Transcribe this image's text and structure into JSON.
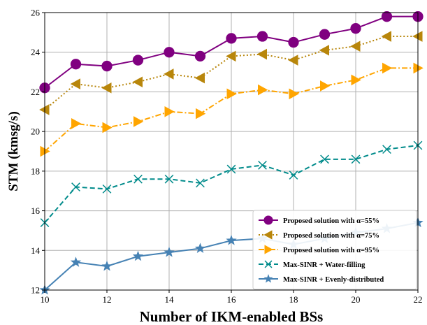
{
  "chart_data": {
    "type": "line",
    "title": "",
    "xlabel": "Number of IKM-enabled BSs",
    "ylabel": "STM (kmsg/s)",
    "xlim": [
      10,
      22
    ],
    "ylim": [
      12,
      26
    ],
    "x_ticks": [
      "10",
      "12",
      "14",
      "16",
      "18",
      "20",
      "22"
    ],
    "y_ticks": [
      "12",
      "14",
      "16",
      "18",
      "20",
      "22",
      "24",
      "26"
    ],
    "grid": true,
    "legend_position": "lower-right",
    "x": [
      10,
      11,
      12,
      13,
      14,
      15,
      16,
      17,
      18,
      19,
      20,
      21,
      22
    ],
    "series": [
      {
        "name": "Proposed solution with α=55%",
        "color": "#800080",
        "dash": "solid",
        "marker": "circle",
        "values": [
          22.2,
          23.4,
          23.3,
          23.6,
          24.0,
          23.8,
          24.7,
          24.8,
          24.5,
          24.9,
          25.2,
          25.8,
          25.8
        ]
      },
      {
        "name": "Proposed solution with α=75%",
        "color": "#B8860B",
        "dash": "dotted",
        "marker": "triangle-left",
        "values": [
          21.1,
          22.4,
          22.2,
          22.5,
          22.9,
          22.7,
          23.8,
          23.9,
          23.6,
          24.1,
          24.3,
          24.8,
          24.8
        ]
      },
      {
        "name": "Proposed solution with α=95%",
        "color": "#FFA500",
        "dash": "dashdot",
        "marker": "triangle-right",
        "values": [
          19.0,
          20.4,
          20.2,
          20.5,
          21.0,
          20.9,
          21.9,
          22.1,
          21.9,
          22.3,
          22.6,
          23.2,
          23.2
        ]
      },
      {
        "name": "Max-SINR + Water-filling",
        "color": "#008B8B",
        "dash": "dashed",
        "marker": "x",
        "values": [
          15.4,
          17.2,
          17.1,
          17.6,
          17.6,
          17.4,
          18.1,
          18.3,
          17.8,
          18.6,
          18.6,
          19.1,
          19.3
        ]
      },
      {
        "name": "Max-SINR + Evenly-distributed",
        "color": "#4682B4",
        "dash": "solid",
        "marker": "star",
        "values": [
          12.0,
          13.4,
          13.2,
          13.7,
          13.9,
          14.1,
          14.5,
          14.6,
          14.3,
          14.6,
          14.9,
          15.1,
          15.4
        ]
      }
    ]
  }
}
